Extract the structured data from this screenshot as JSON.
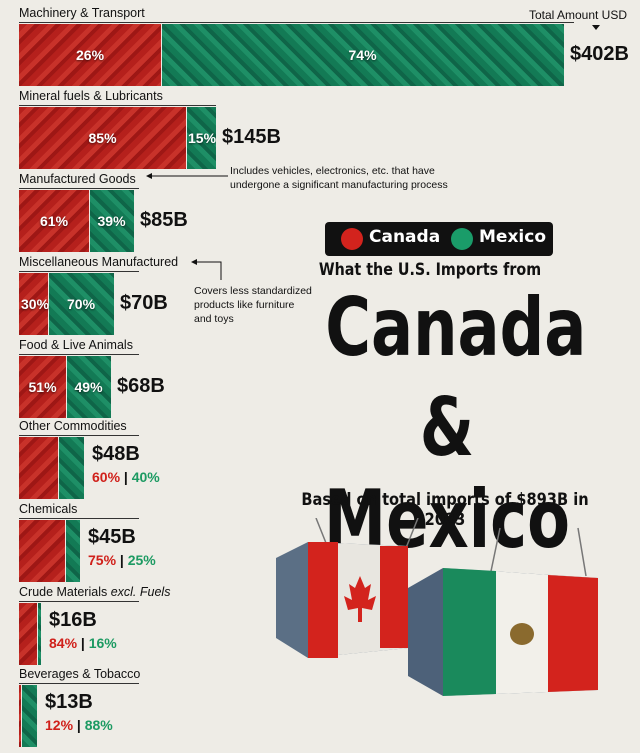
{
  "header": {
    "total_label": "Total Amount USD"
  },
  "legend": {
    "canada_label": "Canada",
    "mexico_label": "Mexico",
    "canada_color": "#d3231d",
    "mexico_color": "#1a9c69"
  },
  "title": {
    "line1": "What the U.S. Imports from",
    "line2": "Canada",
    "line3": "& Mexico",
    "subtitle": "Based on total imports of $893B in 2023"
  },
  "notes": {
    "manufactured": "Includes vehicles, electronics, etc. that have undergone a significant manufacturing process",
    "misc": "Covers less standardized products like furniture and toys"
  },
  "chart_data": {
    "type": "bar",
    "unit": "USD billions",
    "categories": [
      {
        "name": "Machinery & Transport",
        "sub": "",
        "total": 402,
        "total_label": "$402B",
        "canada_pct": 26,
        "mexico_pct": 74
      },
      {
        "name": "Mineral fuels & Lubricants",
        "sub": "",
        "total": 145,
        "total_label": "$145B",
        "canada_pct": 85,
        "mexico_pct": 15
      },
      {
        "name": "Manufactured Goods",
        "sub": "",
        "total": 85,
        "total_label": "$85B",
        "canada_pct": 61,
        "mexico_pct": 39
      },
      {
        "name": "Miscellaneous Manufactured",
        "sub": "",
        "total": 70,
        "total_label": "$70B",
        "canada_pct": 30,
        "mexico_pct": 70
      },
      {
        "name": "Food & Live Animals",
        "sub": "",
        "total": 68,
        "total_label": "$68B",
        "canada_pct": 51,
        "mexico_pct": 49
      },
      {
        "name": "Other Commodities",
        "sub": "",
        "total": 48,
        "total_label": "$48B",
        "canada_pct": 60,
        "mexico_pct": 40
      },
      {
        "name": "Chemicals",
        "sub": "",
        "total": 45,
        "total_label": "$45B",
        "canada_pct": 75,
        "mexico_pct": 25
      },
      {
        "name": "Crude Materials",
        "sub": "excl. Fuels",
        "total": 16,
        "total_label": "$16B",
        "canada_pct": 84,
        "mexico_pct": 16
      },
      {
        "name": "Beverages & Tobacco",
        "sub": "",
        "total": 13,
        "total_label": "$13B",
        "canada_pct": 12,
        "mexico_pct": 88
      }
    ],
    "series": [
      {
        "name": "Canada"
      },
      {
        "name": "Mexico"
      }
    ]
  }
}
